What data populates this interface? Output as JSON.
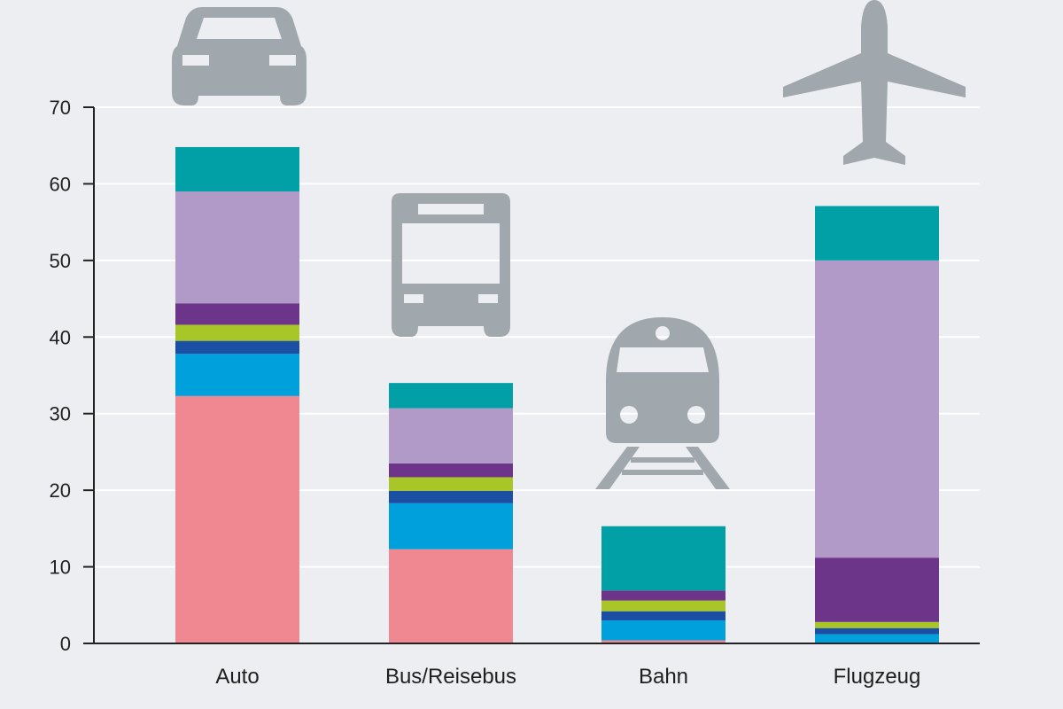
{
  "colors": {
    "background": "#eceef1",
    "icon": "#a1a8ad",
    "axis": "#222222",
    "gridline": "#ffffff"
  },
  "icons": [
    {
      "category": "Auto",
      "name": "car-icon"
    },
    {
      "category": "Bus/Reisebus",
      "name": "bus-icon"
    },
    {
      "category": "Bahn",
      "name": "train-icon"
    },
    {
      "category": "Flugzeug",
      "name": "airplane-icon"
    }
  ],
  "chart_data": {
    "type": "bar",
    "stacked": true,
    "title": "",
    "xlabel": "",
    "ylabel": "",
    "ylim": [
      0,
      70
    ],
    "yticks": [
      0,
      10,
      20,
      30,
      40,
      50,
      60,
      70
    ],
    "grid": true,
    "legend": "none",
    "categories": [
      "Auto",
      "Bus/Reisebus",
      "Bahn",
      "Flugzeug"
    ],
    "series": [
      {
        "color": "#f08891",
        "values": [
          32.3,
          12.3,
          0.4,
          0.0
        ]
      },
      {
        "color": "#00a0dc",
        "values": [
          5.5,
          6.0,
          2.6,
          1.2
        ]
      },
      {
        "color": "#1b4fa3",
        "values": [
          1.7,
          1.6,
          1.2,
          0.8
        ]
      },
      {
        "color": "#a9c628",
        "values": [
          2.1,
          1.8,
          1.4,
          0.8
        ]
      },
      {
        "color": "#6c3589",
        "values": [
          2.8,
          1.8,
          1.3,
          8.4
        ]
      },
      {
        "color": "#b19ac8",
        "values": [
          14.6,
          7.2,
          0.0,
          38.8
        ]
      },
      {
        "color": "#00a0a6",
        "values": [
          5.8,
          3.3,
          8.4,
          7.1
        ]
      }
    ]
  }
}
